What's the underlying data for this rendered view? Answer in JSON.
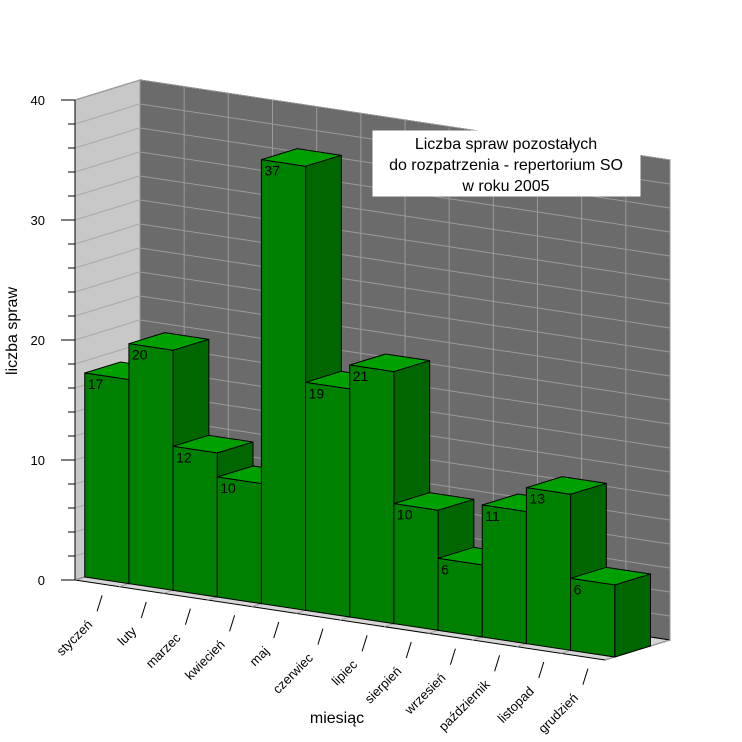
{
  "chart_data": {
    "type": "bar",
    "title_lines": [
      "Liczba spraw pozostałych",
      "do rozpatrzenia - repertorium SO",
      "w roku 2005"
    ],
    "xlabel": "miesiąc",
    "ylabel": "liczba spraw",
    "categories": [
      "styczeń",
      "luty",
      "marzec",
      "kwiecień",
      "maj",
      "czerwiec",
      "lipiec",
      "sierpień",
      "wrzesień",
      "październik",
      "listopad",
      "grudzień"
    ],
    "values": [
      17,
      20,
      12,
      10,
      37,
      19,
      21,
      10,
      6,
      11,
      13,
      6
    ],
    "ylim": [
      0,
      40
    ],
    "yticks": [
      0,
      10,
      20,
      30,
      40
    ],
    "grid": true,
    "three_d": true,
    "colors": {
      "bar_front": "#008000",
      "bar_side": "#006600",
      "bar_top": "#00a000",
      "back_wall": "#6b6b6b",
      "side_wall": "#c8c8c8",
      "floor": "#d6d6d6",
      "grid": "#9a9a9a",
      "title_bg": "#ffffff"
    }
  }
}
